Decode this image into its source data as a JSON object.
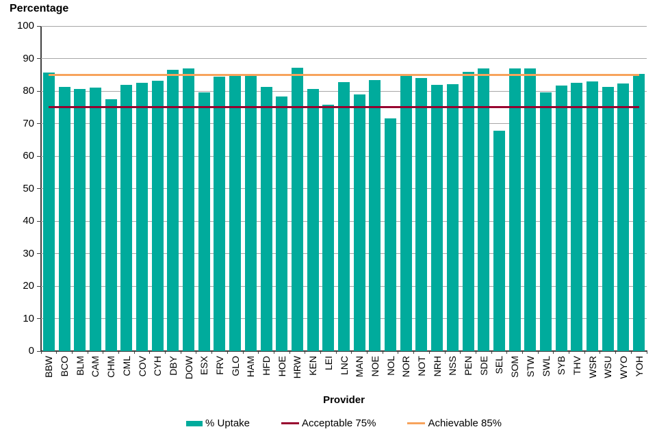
{
  "chart": {
    "y_axis_title": "Percentage",
    "x_axis_title": "Provider",
    "legend": [
      {
        "label": "% Uptake",
        "swatch": "bar",
        "color": "#00AB9C"
      },
      {
        "label": "Acceptable 75%",
        "swatch": "line",
        "color": "#98002E"
      },
      {
        "label": "Achievable 85%",
        "swatch": "line",
        "color": "#F7A35C"
      }
    ]
  },
  "chart_data": {
    "type": "bar",
    "title": "",
    "xlabel": "Provider",
    "ylabel": "Percentage",
    "ylim": [
      0,
      100
    ],
    "yticks": [
      0,
      10,
      20,
      30,
      40,
      50,
      60,
      70,
      80,
      90,
      100
    ],
    "grid": true,
    "legend_position": "bottom",
    "categories": [
      "BBW",
      "BCO",
      "BLM",
      "CAM",
      "CHM",
      "CML",
      "COV",
      "CYH",
      "DBY",
      "DOW",
      "ESX",
      "FRV",
      "GLO",
      "HAM",
      "HFD",
      "HOE",
      "HRW",
      "KEN",
      "LEI",
      "LNC",
      "MAN",
      "NOE",
      "NOL",
      "NOR",
      "NOT",
      "NRH",
      "NSS",
      "PEN",
      "SDE",
      "SEL",
      "SOM",
      "STW",
      "SWL",
      "SYB",
      "THV",
      "WSR",
      "WSU",
      "WYO",
      "YOH"
    ],
    "series": [
      {
        "name": "% Uptake",
        "type": "bar",
        "color": "#00AB9C",
        "values": [
          85.6,
          81.3,
          80.7,
          81.0,
          77.5,
          81.8,
          82.5,
          83.2,
          86.6,
          87.0,
          79.6,
          84.5,
          84.6,
          85.3,
          81.3,
          78.3,
          87.2,
          80.7,
          75.7,
          82.8,
          79.0,
          83.4,
          71.5,
          84.7,
          84.1,
          81.8,
          82.2,
          85.8,
          86.9,
          67.8,
          86.9,
          86.9,
          79.5,
          81.7,
          82.6,
          83.0,
          81.3,
          82.4,
          85.3
        ]
      },
      {
        "name": "Acceptable 75%",
        "type": "hline",
        "color": "#98002E",
        "value": 75
      },
      {
        "name": "Achievable 85%",
        "type": "hline",
        "color": "#F7A35C",
        "value": 85
      }
    ],
    "colors": {
      "gridline": "#A6A6A6",
      "axis": "#404040",
      "text": "#000000"
    }
  }
}
